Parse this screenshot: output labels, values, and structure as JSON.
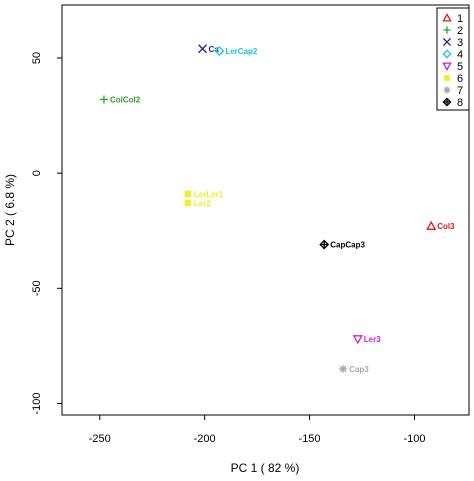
{
  "chart_data": {
    "type": "scatter",
    "xlabel": "PC 1 ( 82 %)",
    "ylabel": "PC 2 ( 6.8 %)",
    "xlim": [
      -268,
      -74
    ],
    "ylim": [
      -105,
      73
    ],
    "xticks": [
      -250,
      -200,
      -150,
      -100
    ],
    "yticks": [
      -100,
      -50,
      0,
      50
    ],
    "grid": false,
    "legend_position": "top-right",
    "series": [
      {
        "name": "1",
        "color": "#e41a1c",
        "marker": "triangle-up",
        "points": [
          {
            "x": -92,
            "y": -23,
            "label": "Col3"
          }
        ]
      },
      {
        "name": "2",
        "color": "#33a02c",
        "marker": "plus",
        "points": [
          {
            "x": -248,
            "y": 32,
            "label": "ColCol2"
          }
        ]
      },
      {
        "name": "3",
        "color": "#1f1f9e",
        "marker": "cross",
        "points": [
          {
            "x": -201,
            "y": 54,
            "label": "Ca"
          }
        ]
      },
      {
        "name": "4",
        "color": "#17c4e8",
        "marker": "diamond",
        "points": [
          {
            "x": -193,
            "y": 53,
            "label": "LerCap2"
          }
        ]
      },
      {
        "name": "5",
        "color": "#d21fd2",
        "marker": "triangle-down",
        "points": [
          {
            "x": -127,
            "y": -72,
            "label": "Ler3"
          }
        ]
      },
      {
        "name": "6",
        "color": "#f2ef24",
        "marker": "square",
        "points": [
          {
            "x": -208,
            "y": -9,
            "label": "LerLer1"
          },
          {
            "x": -208,
            "y": -13,
            "label": "Ler2"
          }
        ]
      },
      {
        "name": "7",
        "color": "#a9a9a9",
        "marker": "asterisk",
        "points": [
          {
            "x": -134,
            "y": -85,
            "label": "Cap3"
          }
        ]
      },
      {
        "name": "8",
        "color": "#000000",
        "marker": "diamond-plus",
        "points": [
          {
            "x": -143,
            "y": -31,
            "label": "CapCap3"
          }
        ]
      }
    ]
  }
}
